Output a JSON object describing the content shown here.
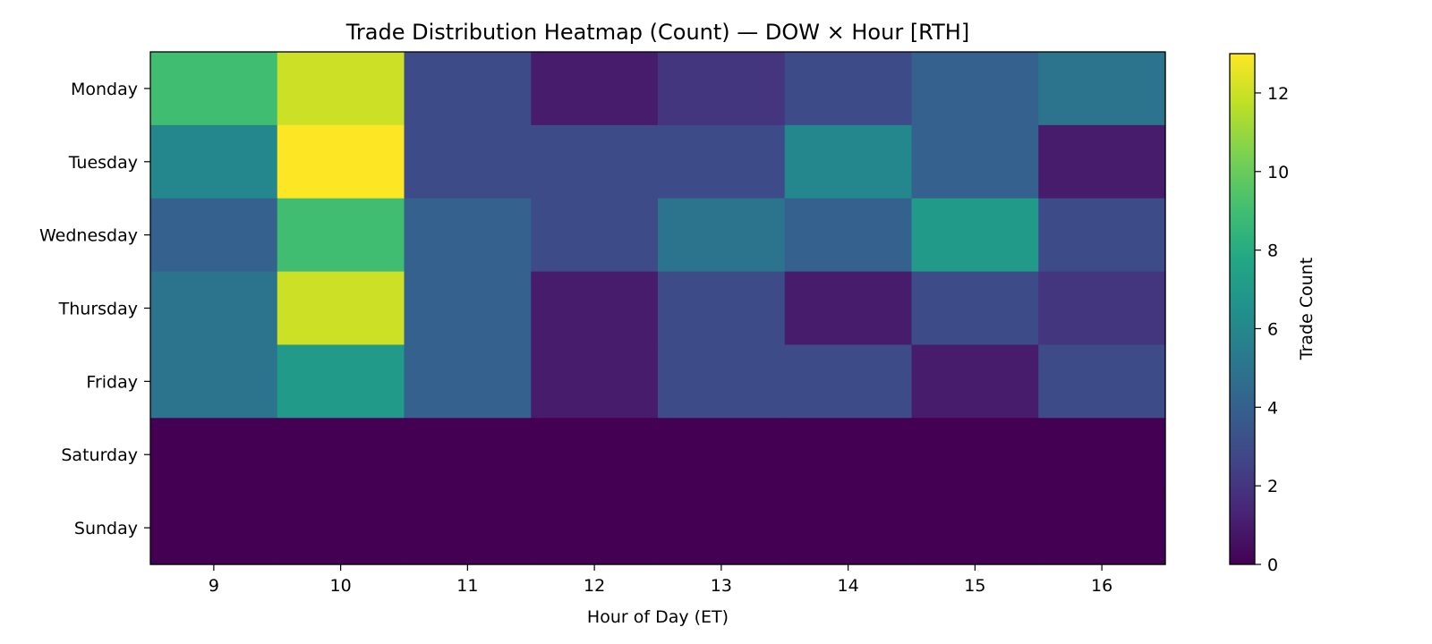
{
  "chart_data": {
    "type": "heatmap",
    "title": "Trade Distribution Heatmap (Count) — DOW × Hour [RTH]",
    "xlabel": "Hour of Day (ET)",
    "ylabel": "",
    "x_categories": [
      "9",
      "10",
      "11",
      "12",
      "13",
      "14",
      "15",
      "16"
    ],
    "y_categories": [
      "Monday",
      "Tuesday",
      "Wednesday",
      "Thursday",
      "Friday",
      "Saturday",
      "Sunday"
    ],
    "values": [
      [
        9,
        12,
        3,
        1,
        2,
        3,
        4,
        5
      ],
      [
        6,
        13,
        3,
        3,
        3,
        6,
        4,
        1
      ],
      [
        4,
        9,
        4,
        3,
        5,
        4,
        7,
        3
      ],
      [
        5,
        12,
        4,
        1,
        3,
        1,
        3,
        2
      ],
      [
        5,
        7,
        4,
        1,
        3,
        3,
        1,
        3
      ],
      [
        0,
        0,
        0,
        0,
        0,
        0,
        0,
        0
      ],
      [
        0,
        0,
        0,
        0,
        0,
        0,
        0,
        0
      ]
    ],
    "colorbar": {
      "label": "Trade Count",
      "range": [
        0,
        13
      ],
      "ticks": [
        "0",
        "2",
        "4",
        "6",
        "8",
        "10",
        "12"
      ],
      "colormap": "viridis"
    },
    "grid": false
  }
}
